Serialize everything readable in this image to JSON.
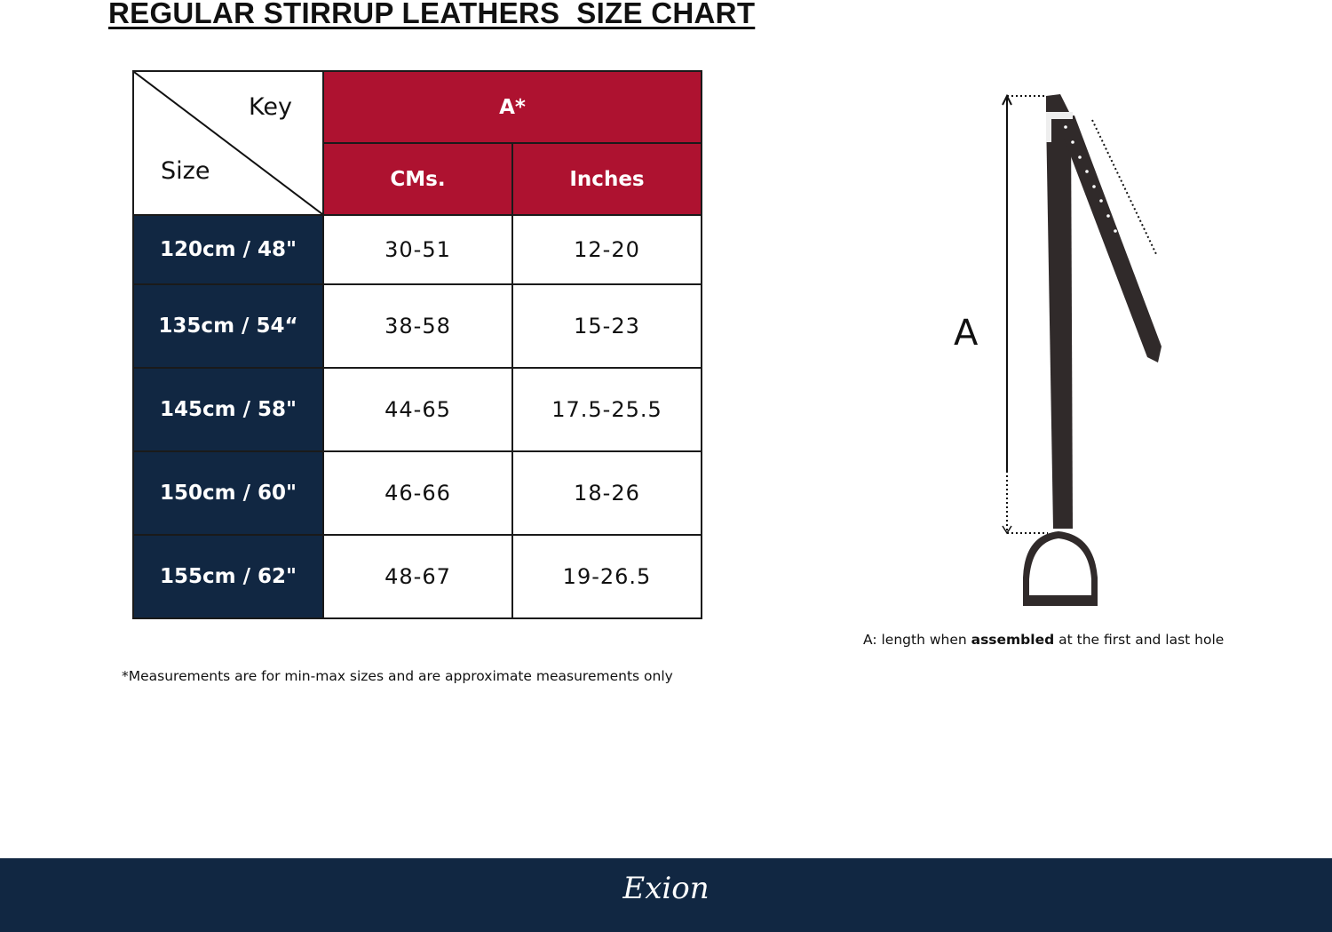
{
  "title": "REGULAR STIRRUP LEATHERS  SIZE CHART",
  "table": {
    "key_label": "Key",
    "size_label": "Size",
    "group_header": "A*",
    "columns": [
      "CMs.",
      "Inches"
    ],
    "rows": [
      {
        "size": "120cm / 48\"",
        "cms": "30-51",
        "inches": "12-20"
      },
      {
        "size": "135cm / 54“",
        "cms": "38-58",
        "inches": "15-23"
      },
      {
        "size": "145cm / 58\"",
        "cms": "44-65",
        "inches": "17.5-25.5"
      },
      {
        "size": "150cm / 60\"",
        "cms": "46-66",
        "inches": "18-26"
      },
      {
        "size": "155cm / 62\"",
        "cms": "48-67",
        "inches": "19-26.5"
      }
    ]
  },
  "note": "*Measurements are for min-max sizes and are approximate measurements only",
  "illustration": {
    "label": "A",
    "caption_pre": "A: length when ",
    "caption_bold": "assembled",
    "caption_post": " at the first and last hole"
  },
  "footer": {
    "logo": "Exion"
  },
  "colors": {
    "header_red": "#ae1230",
    "navy": "#112742",
    "leather": "#302a2a"
  }
}
